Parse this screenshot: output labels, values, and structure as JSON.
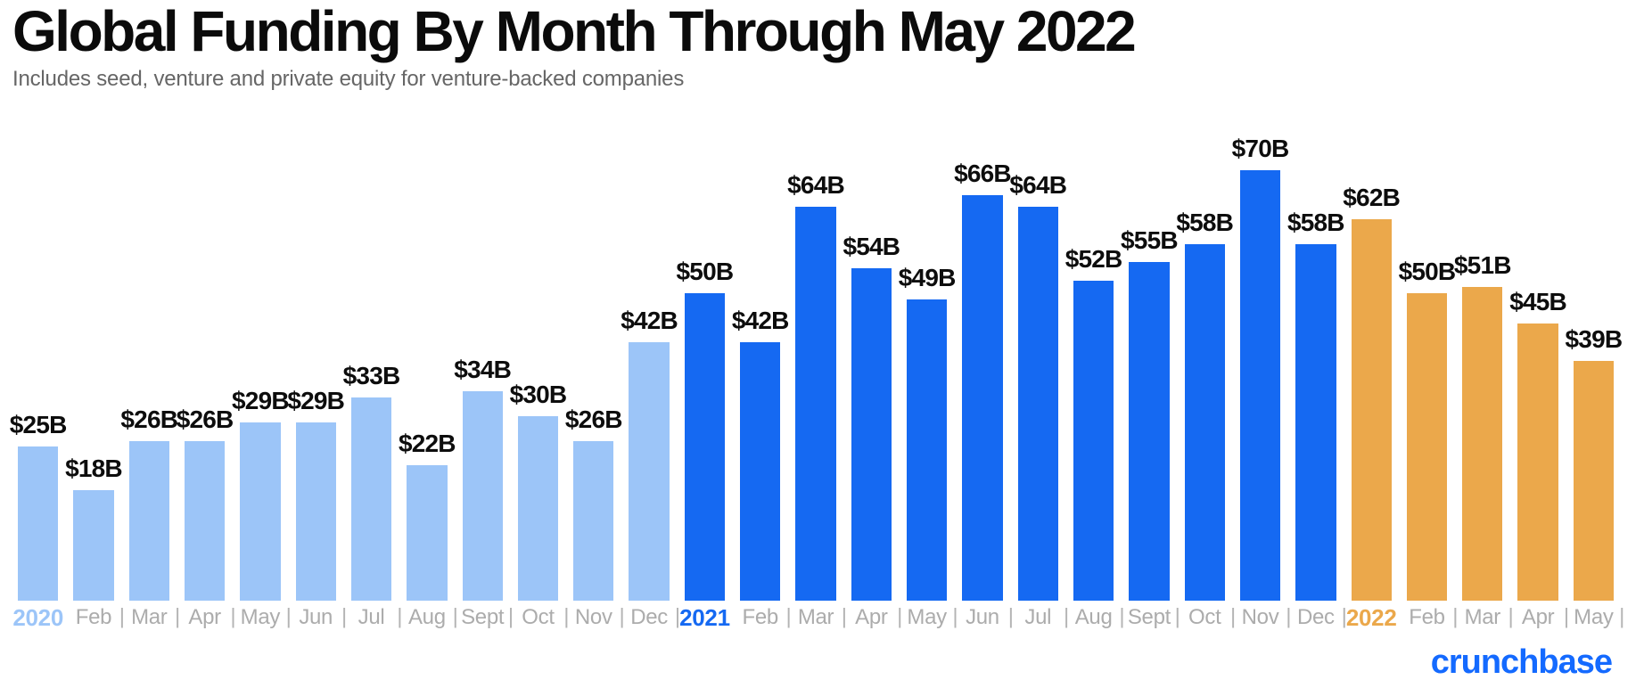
{
  "header": {
    "title": "Global Funding By Month Through May 2022",
    "subtitle": "Includes seed, venture and private equity for venture-backed companies"
  },
  "axis": {
    "separator": "|"
  },
  "footer": {
    "logo_text": "crunchbase"
  },
  "colors": {
    "title_text": "#0b0b0b",
    "subtitle_text": "#666666",
    "axis_text": "#acacac",
    "bar_label_text": "#0d0d0d",
    "logo_blue": "#146aff",
    "year_2020": "#9cc5f8",
    "year_2021": "#1569f2",
    "year_2022": "#eba84b"
  },
  "chart_data": {
    "type": "bar",
    "title": "Global Funding By Month Through May 2022",
    "subtitle": "Includes seed, venture and private equity for venture-backed companies",
    "value_unit": "USD billions",
    "ylim": [
      0,
      70
    ],
    "grid": false,
    "legend_position": "none",
    "groups": [
      {
        "name": "2020",
        "color": "#9cc5f8"
      },
      {
        "name": "2021",
        "color": "#1569f2"
      },
      {
        "name": "2022",
        "color": "#eba84b"
      }
    ],
    "bars": [
      {
        "axis": "2020",
        "year": true,
        "group": "2020",
        "month": "Jan",
        "value": 25,
        "label": "$25B"
      },
      {
        "axis": "Feb",
        "year": false,
        "group": "2020",
        "month": "Feb",
        "value": 18,
        "label": "$18B"
      },
      {
        "axis": "Mar",
        "year": false,
        "group": "2020",
        "month": "Mar",
        "value": 26,
        "label": "$26B"
      },
      {
        "axis": "Apr",
        "year": false,
        "group": "2020",
        "month": "Apr",
        "value": 26,
        "label": "$26B"
      },
      {
        "axis": "May",
        "year": false,
        "group": "2020",
        "month": "May",
        "value": 29,
        "label": "$29B"
      },
      {
        "axis": "Jun",
        "year": false,
        "group": "2020",
        "month": "Jun",
        "value": 29,
        "label": "$29B"
      },
      {
        "axis": "Jul",
        "year": false,
        "group": "2020",
        "month": "Jul",
        "value": 33,
        "label": "$33B"
      },
      {
        "axis": "Aug",
        "year": false,
        "group": "2020",
        "month": "Aug",
        "value": 22,
        "label": "$22B"
      },
      {
        "axis": "Sept",
        "year": false,
        "group": "2020",
        "month": "Sept",
        "value": 34,
        "label": "$34B"
      },
      {
        "axis": "Oct",
        "year": false,
        "group": "2020",
        "month": "Oct",
        "value": 30,
        "label": "$30B"
      },
      {
        "axis": "Nov",
        "year": false,
        "group": "2020",
        "month": "Nov",
        "value": 26,
        "label": "$26B"
      },
      {
        "axis": "Dec",
        "year": false,
        "group": "2020",
        "month": "Dec",
        "value": 42,
        "label": "$42B"
      },
      {
        "axis": "2021",
        "year": true,
        "group": "2021",
        "month": "Jan",
        "value": 50,
        "label": "$50B"
      },
      {
        "axis": "Feb",
        "year": false,
        "group": "2021",
        "month": "Feb",
        "value": 42,
        "label": "$42B"
      },
      {
        "axis": "Mar",
        "year": false,
        "group": "2021",
        "month": "Mar",
        "value": 64,
        "label": "$64B"
      },
      {
        "axis": "Apr",
        "year": false,
        "group": "2021",
        "month": "Apr",
        "value": 54,
        "label": "$54B"
      },
      {
        "axis": "May",
        "year": false,
        "group": "2021",
        "month": "May",
        "value": 49,
        "label": "$49B"
      },
      {
        "axis": "Jun",
        "year": false,
        "group": "2021",
        "month": "Jun",
        "value": 66,
        "label": "$66B"
      },
      {
        "axis": "Jul",
        "year": false,
        "group": "2021",
        "month": "Jul",
        "value": 64,
        "label": "$64B"
      },
      {
        "axis": "Aug",
        "year": false,
        "group": "2021",
        "month": "Aug",
        "value": 52,
        "label": "$52B"
      },
      {
        "axis": "Sept",
        "year": false,
        "group": "2021",
        "month": "Sept",
        "value": 55,
        "label": "$55B"
      },
      {
        "axis": "Oct",
        "year": false,
        "group": "2021",
        "month": "Oct",
        "value": 58,
        "label": "$58B"
      },
      {
        "axis": "Nov",
        "year": false,
        "group": "2021",
        "month": "Nov",
        "value": 70,
        "label": "$70B"
      },
      {
        "axis": "Dec",
        "year": false,
        "group": "2021",
        "month": "Dec",
        "value": 58,
        "label": "$58B"
      },
      {
        "axis": "2022",
        "year": true,
        "group": "2022",
        "month": "Jan",
        "value": 62,
        "label": "$62B"
      },
      {
        "axis": "Feb",
        "year": false,
        "group": "2022",
        "month": "Feb",
        "value": 50,
        "label": "$50B"
      },
      {
        "axis": "Mar",
        "year": false,
        "group": "2022",
        "month": "Mar",
        "value": 51,
        "label": "$51B"
      },
      {
        "axis": "Apr",
        "year": false,
        "group": "2022",
        "month": "Apr",
        "value": 45,
        "label": "$45B"
      },
      {
        "axis": "May",
        "year": false,
        "group": "2022",
        "month": "May",
        "value": 39,
        "label": "$39B"
      }
    ]
  }
}
